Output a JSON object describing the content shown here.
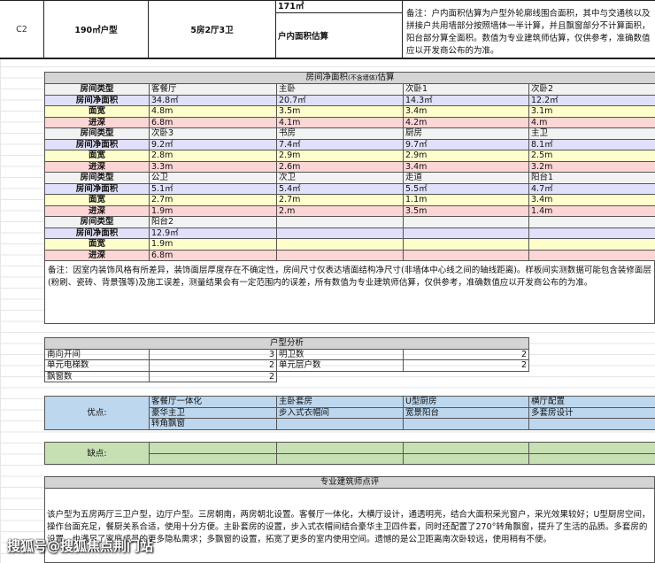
{
  "header": {
    "code": "C2",
    "size": "190㎡户型",
    "layout": "5房2厅3卫",
    "inner_area": "171㎡",
    "inner_area_label": "户内面积估算",
    "note": "备注：户内面积估算为户型外轮廓线围合面积，其中与交通核以及拼接户共用墙部分按照墙体一半计算，并且飘窗部分不计算面积，阳台部分算全面积。数值为专业建筑师估算，仅供参考，准确数值应以开发商公布的为准。"
  },
  "rooms": {
    "title": "房间净面积",
    "title_small": "(不含墙体)",
    "title_suffix": "估算",
    "row_labels": [
      "房间类型",
      "房间净面积",
      "面宽",
      "进深"
    ],
    "groups": [
      [
        [
          "客餐厅",
          "34.8㎡",
          "4.8m",
          "6.8m"
        ],
        [
          "主卧",
          "20.7㎡",
          "3.5m",
          "4.1m"
        ],
        [
          "次卧1",
          "14.3㎡",
          "3.4m",
          "4.2m"
        ],
        [
          "次卧2",
          "12.2㎡",
          "3.1m",
          "4.m"
        ]
      ],
      [
        [
          "次卧3",
          "9.2㎡",
          "2.8m",
          "3.3m"
        ],
        [
          "书房",
          "7.4㎡",
          "2.9m",
          "2.6m"
        ],
        [
          "厨房",
          "9.7㎡",
          "2.9m",
          "3.4m"
        ],
        [
          "主卫",
          "8.1㎡",
          "2.5m",
          "3.2m"
        ]
      ],
      [
        [
          "公卫",
          "5.1㎡",
          "2.7m",
          "1.9m"
        ],
        [
          "次卫",
          "5.4㎡",
          "2.7m",
          "2.m"
        ],
        [
          "走道",
          "5.5㎡",
          "1.1m",
          "3.5m"
        ],
        [
          "阳台1",
          "4.7㎡",
          "3.4m",
          "1.4m"
        ]
      ],
      [
        [
          "阳台2",
          "12.9㎡",
          "1.9m",
          "6.8m"
        ],
        [
          "",
          "",
          "",
          ""
        ],
        [
          "",
          "",
          "",
          ""
        ],
        [
          "",
          "",
          "",
          ""
        ]
      ]
    ],
    "note": "备注：因室内装饰风格有所差异，装饰面层厚度存在不确定性，房间尺寸仅表达墙面结构净尺寸(非墙体中心线之间的轴线距离)。样板间实测数据可能包含装修面层(粉刷、瓷砖、背景强等)及施工误差，测量结果会有一定范围内的误差，所有数值为专业建筑师估算，仅供参考，准确数值应以开发商公布的为准。"
  },
  "analysis": {
    "title": "户型分析",
    "rows": [
      [
        "南向开间",
        "3",
        "明卫数",
        "2"
      ],
      [
        "单元电梯数",
        "2",
        "单元层户数",
        "2"
      ],
      [
        "飘窗数",
        "2",
        "",
        ""
      ]
    ]
  },
  "pros": {
    "label": "优点:",
    "items": [
      [
        "客餐厅一体化",
        "主卧套房",
        "U型厨房",
        "横厅配置"
      ],
      [
        "豪华主卫",
        "步入式衣帽间",
        "宽景阳台",
        "多套房设计"
      ],
      [
        "转角飘窗",
        "",
        "",
        ""
      ]
    ]
  },
  "cons": {
    "label": "缺点:"
  },
  "review": {
    "title": "专业建筑师点评",
    "text": "该户型为五房两厅三卫户型，边厅户型。三房朝南，两房朝北设置。客餐厅一体化，大横厅设计，通透明亮，结合大面积采光窗户，采光效果较好；U型厨房空间，操作台面充足，餐厨关系合适，使用十分方便。主卧套房的设置，步入式衣帽间结合豪华主卫四件套，同时还配置了270°转角飘窗，提升了生活的品质。多套房的设置，也满足了家庭成员的更多隐私需求；多飘窗的设置，拓宽了更多的室内使用空间。遗憾的是公卫距离南次卧较远，使用稍有不便。"
  },
  "watermark": "搜狐号@搜狐焦点荆门站"
}
